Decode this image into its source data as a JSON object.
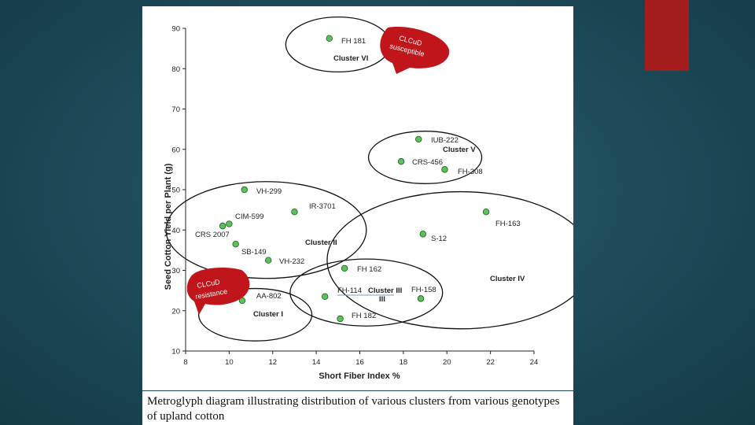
{
  "caption": "Metroglyph diagram illustrating distribution of various clusters from various genotypes of upland cotton",
  "colors": {
    "accent_red": "#a51c1c",
    "point_fill": "#5cc15c",
    "callout_red": "#c0161b"
  },
  "chart_data": {
    "type": "scatter",
    "xlabel": "Short Fiber Index %",
    "ylabel": "Seed Cotton Yield per Plant (g)",
    "xlim": [
      8,
      24
    ],
    "ylim": [
      10,
      90
    ],
    "xticks": [
      8,
      10,
      12,
      14,
      16,
      18,
      20,
      22,
      24
    ],
    "yticks": [
      10,
      20,
      30,
      40,
      50,
      60,
      70,
      80,
      90
    ],
    "points": [
      {
        "name": "FH 181",
        "x": 14.6,
        "y": 87.5
      },
      {
        "name": "IUB-222",
        "x": 18.7,
        "y": 62.5
      },
      {
        "name": "CRS-456",
        "x": 17.9,
        "y": 57.0
      },
      {
        "name": "FH-308",
        "x": 19.9,
        "y": 55.0
      },
      {
        "name": "VH-299",
        "x": 10.7,
        "y": 50.0
      },
      {
        "name": "IR-3701",
        "x": 13.0,
        "y": 44.5
      },
      {
        "name": "CIM-599",
        "x": 10.0,
        "y": 41.5
      },
      {
        "name": "CRS 2007",
        "x": 9.7,
        "y": 41.0
      },
      {
        "name": "SB-149",
        "x": 10.3,
        "y": 36.5
      },
      {
        "name": "VH-232",
        "x": 11.8,
        "y": 32.5
      },
      {
        "name": "FH-163",
        "x": 21.8,
        "y": 44.5
      },
      {
        "name": "S-12",
        "x": 18.9,
        "y": 39.0
      },
      {
        "name": "FH 162",
        "x": 15.3,
        "y": 30.5
      },
      {
        "name": "FH-114",
        "x": 14.4,
        "y": 23.5
      },
      {
        "name": "FH-158",
        "x": 18.8,
        "y": 23.0
      },
      {
        "name": "FH 182",
        "x": 15.1,
        "y": 18.0
      },
      {
        "name": "AA-802",
        "x": 10.6,
        "y": 22.5
      }
    ],
    "clusters": [
      {
        "name": "Cluster VI",
        "cx": 15.0,
        "cy": 86.0,
        "rx": 2.4,
        "ry": 6.8
      },
      {
        "name": "Cluster V",
        "cx": 19.0,
        "cy": 58.0,
        "rx": 2.6,
        "ry": 6.5
      },
      {
        "name": "Cluster II",
        "cx": 11.7,
        "cy": 40.0,
        "rx": 4.6,
        "ry": 12.0
      },
      {
        "name": "Cluster IV",
        "cx": 20.6,
        "cy": 32.5,
        "rx": 6.1,
        "ry": 17.0
      },
      {
        "name": "Cluster III",
        "cx": 16.3,
        "cy": 24.5,
        "rx": 3.5,
        "ry": 8.3
      },
      {
        "name": "Cluster I",
        "cx": 11.2,
        "cy": 19.0,
        "rx": 2.6,
        "ry": 6.5
      }
    ],
    "callouts": [
      {
        "name": "susceptible",
        "line1": "CLCuD",
        "line2": "susceptible"
      },
      {
        "name": "resistance",
        "line1": "CLCuD",
        "line2": "resistance"
      }
    ]
  }
}
